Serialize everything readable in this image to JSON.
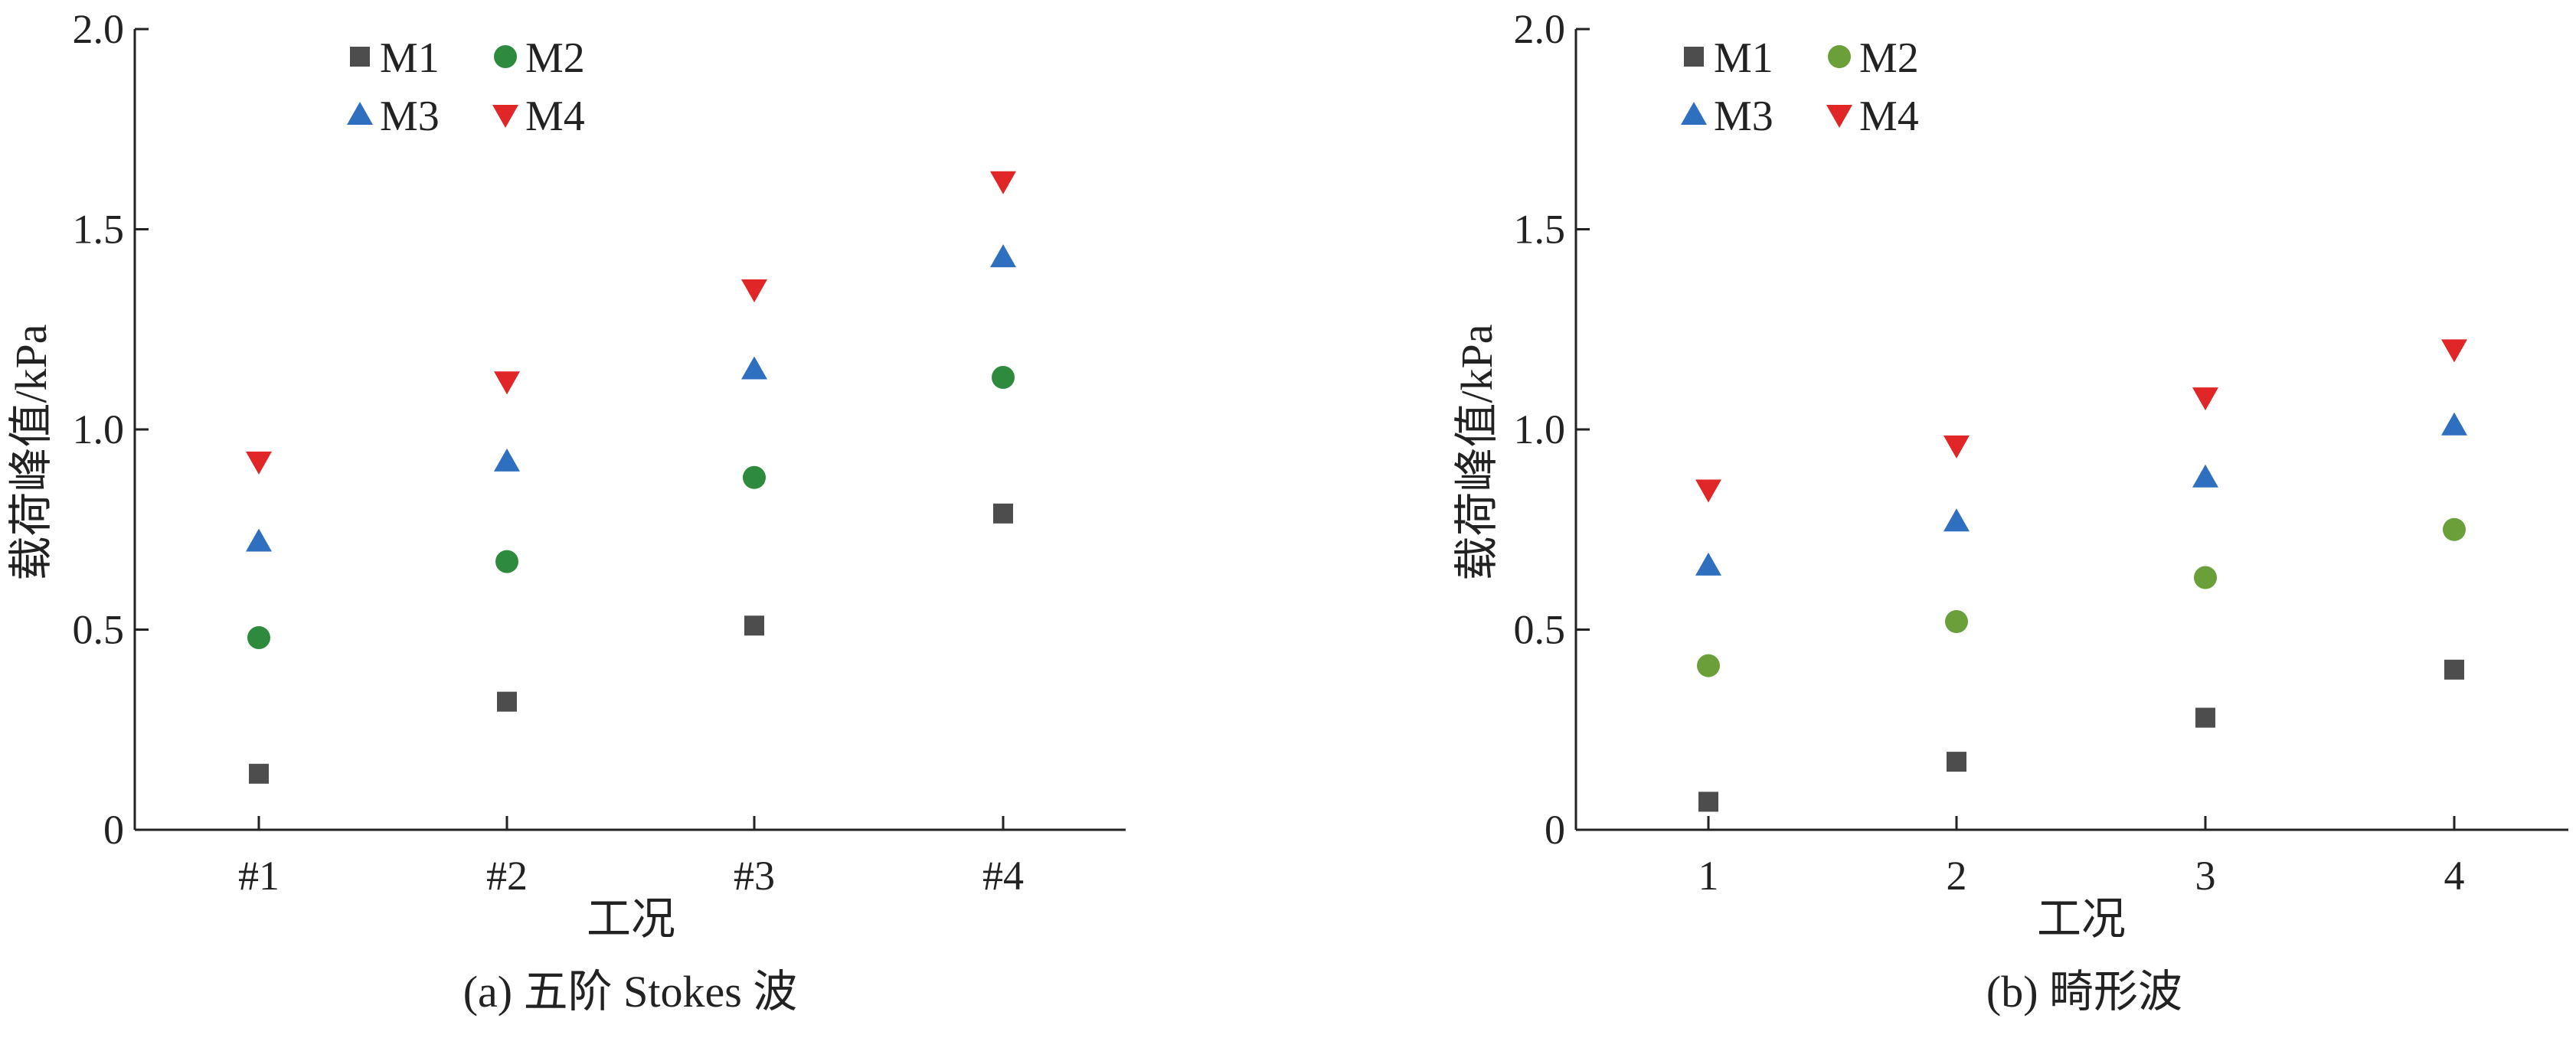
{
  "chart_data": [
    {
      "type": "scatter",
      "caption": "(a)  五阶 Stokes 波",
      "categories": [
        "#1",
        "#2",
        "#3",
        "#4"
      ],
      "xlabel": "工况",
      "ylabel": "载荷峰值/kPa",
      "ylim": [
        0,
        2.0
      ],
      "yticks": [
        "0",
        "0.5",
        "1.0",
        "1.5",
        "2.0"
      ],
      "grid": false,
      "legend_position": "top-left",
      "series": [
        {
          "name": "M1",
          "marker": "square",
          "color": "#4d4d4d",
          "values": [
            0.14,
            0.32,
            0.51,
            0.79
          ]
        },
        {
          "name": "M2",
          "marker": "circle",
          "color": "#2e8b3e",
          "values": [
            0.48,
            0.67,
            0.88,
            1.13
          ]
        },
        {
          "name": "M3",
          "marker": "triangle-up",
          "color": "#2f6fc0",
          "values": [
            0.72,
            0.92,
            1.15,
            1.43
          ]
        },
        {
          "name": "M4",
          "marker": "triangle-down",
          "color": "#e02626",
          "values": [
            0.92,
            1.12,
            1.35,
            1.62
          ]
        }
      ]
    },
    {
      "type": "scatter",
      "caption": "(b)  畸形波",
      "categories": [
        "1",
        "2",
        "3",
        "4"
      ],
      "xlabel": "工况",
      "ylabel": "载荷峰值/kPa",
      "ylim": [
        0,
        2.0
      ],
      "yticks": [
        "0",
        "0.5",
        "1.0",
        "1.5",
        "2.0"
      ],
      "grid": false,
      "legend_position": "top-left",
      "series": [
        {
          "name": "M1",
          "marker": "square",
          "color": "#4d4d4d",
          "values": [
            0.07,
            0.17,
            0.28,
            0.4
          ]
        },
        {
          "name": "M2",
          "marker": "circle",
          "color": "#6a9f3a",
          "values": [
            0.41,
            0.52,
            0.63,
            0.75
          ]
        },
        {
          "name": "M3",
          "marker": "triangle-up",
          "color": "#2f6fc0",
          "values": [
            0.66,
            0.77,
            0.88,
            1.01
          ]
        },
        {
          "name": "M4",
          "marker": "triangle-down",
          "color": "#e02626",
          "values": [
            0.85,
            0.96,
            1.08,
            1.2
          ]
        }
      ]
    }
  ]
}
